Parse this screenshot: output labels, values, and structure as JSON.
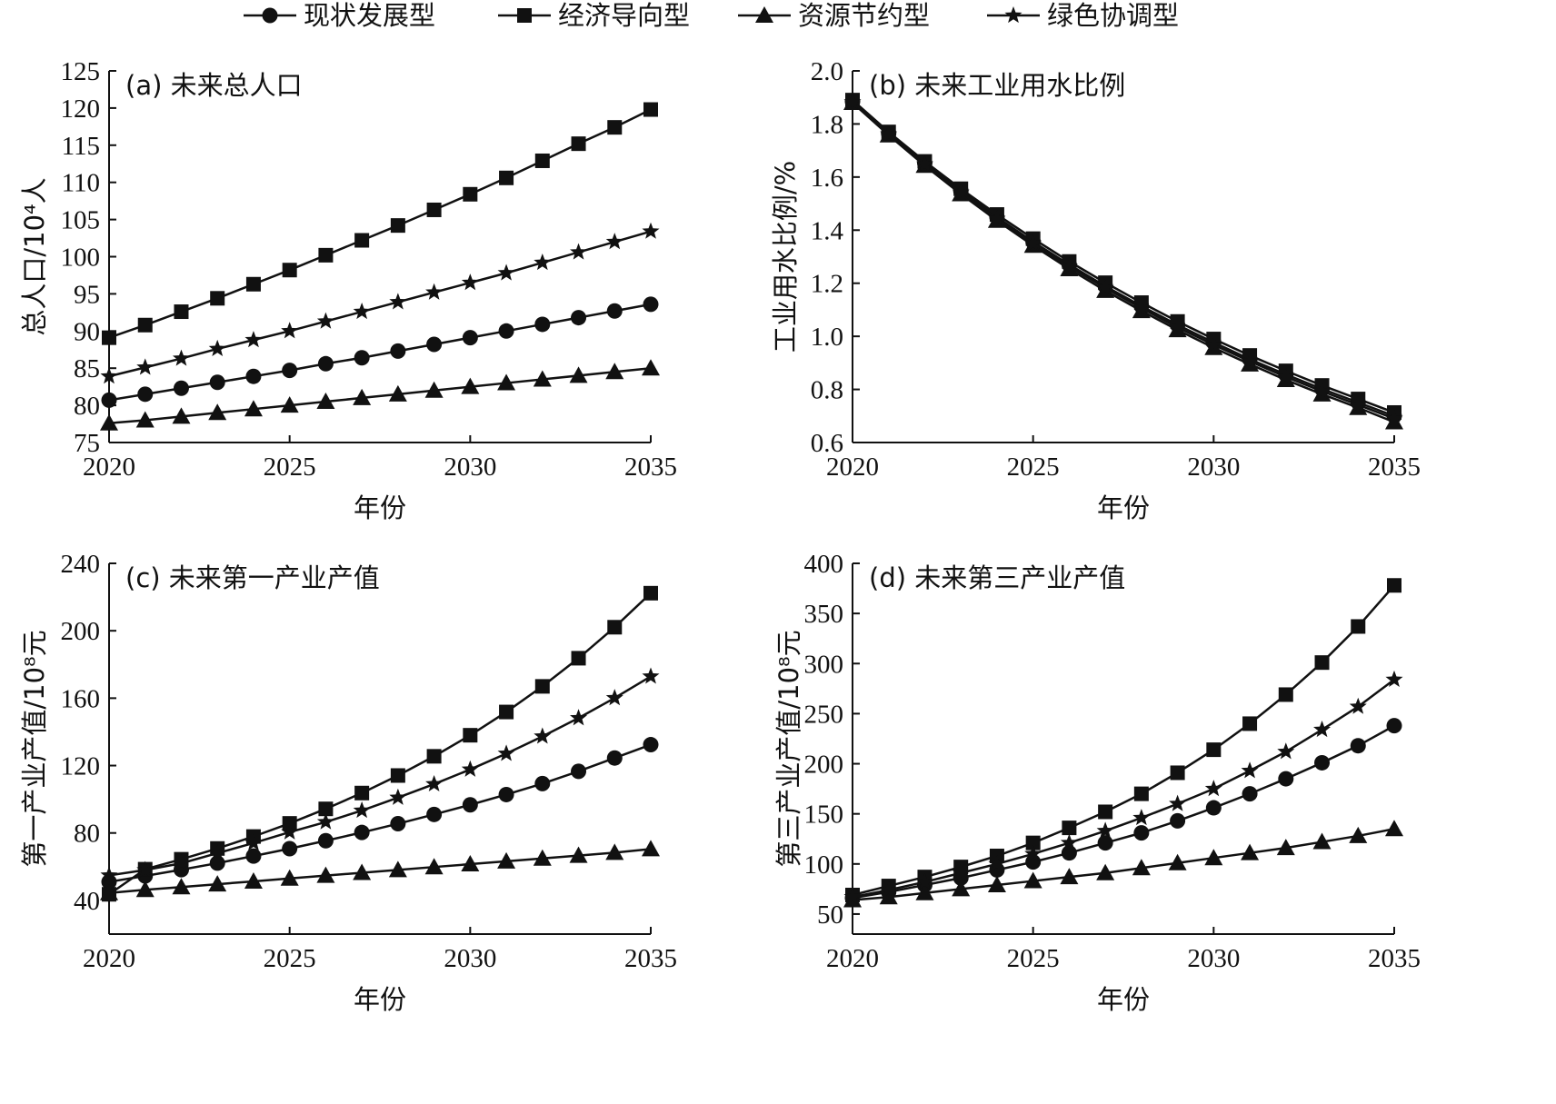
{
  "legend": {
    "series": [
      "现状发展型",
      "经济导向型",
      "资源节约型",
      "绿色协调型"
    ],
    "markers": [
      "circle",
      "square",
      "triangle",
      "star"
    ]
  },
  "chart_data": [
    {
      "type": "line",
      "title": "(a) 未来总人口",
      "xlabel": "年份",
      "ylabel": "总人口/10⁴人",
      "xlim": [
        2020,
        2035
      ],
      "ylim": [
        75,
        125
      ],
      "xticks": [
        2020,
        2025,
        2030,
        2035
      ],
      "yticks": [
        75,
        80,
        85,
        90,
        95,
        100,
        105,
        110,
        115,
        120,
        125
      ],
      "x": [
        2020,
        2021,
        2022,
        2023,
        2024,
        2025,
        2026,
        2027,
        2028,
        2029,
        2030,
        2031,
        2032,
        2033,
        2034,
        2035
      ],
      "series": [
        {
          "name": "现状发展型",
          "values": [
            80.7,
            81.5,
            82.3,
            83.1,
            83.9,
            84.7,
            85.6,
            86.4,
            87.3,
            88.2,
            89.1,
            90.0,
            90.9,
            91.8,
            92.7,
            93.6
          ]
        },
        {
          "name": "经济导向型",
          "values": [
            89.1,
            90.8,
            92.6,
            94.4,
            96.3,
            98.2,
            100.2,
            102.2,
            104.2,
            106.3,
            108.4,
            110.6,
            112.9,
            115.2,
            117.4,
            119.8
          ]
        },
        {
          "name": "资源节约型",
          "values": [
            77.6,
            78.0,
            78.5,
            79.0,
            79.5,
            80.0,
            80.5,
            81.0,
            81.5,
            82.0,
            82.5,
            83.0,
            83.5,
            84.0,
            84.5,
            85.0
          ]
        },
        {
          "name": "绿色协调型",
          "values": [
            83.9,
            85.1,
            86.3,
            87.6,
            88.8,
            90.0,
            91.3,
            92.6,
            93.9,
            95.2,
            96.5,
            97.8,
            99.2,
            100.6,
            102.0,
            103.4
          ]
        }
      ]
    },
    {
      "type": "line",
      "title": "(b) 未来工业用水比例",
      "xlabel": "年份",
      "ylabel": "工业用水比例/%",
      "xlim": [
        2020,
        2035
      ],
      "ylim": [
        0.6,
        2.0
      ],
      "xticks": [
        2020,
        2025,
        2030,
        2035
      ],
      "yticks": [
        0.6,
        0.8,
        1.0,
        1.2,
        1.4,
        1.6,
        1.8,
        2.0
      ],
      "tick_decimals": 1,
      "x": [
        2020,
        2021,
        2022,
        2023,
        2024,
        2025,
        2026,
        2027,
        2028,
        2029,
        2030,
        2031,
        2032,
        2033,
        2034,
        2035
      ],
      "series": [
        {
          "name": "现状发展型",
          "values": [
            1.885,
            1.765,
            1.653,
            1.548,
            1.449,
            1.356,
            1.27,
            1.189,
            1.114,
            1.043,
            0.977,
            0.914,
            0.856,
            0.802,
            0.751,
            0.7
          ]
        },
        {
          "name": "经济导向型",
          "values": [
            1.89,
            1.77,
            1.659,
            1.556,
            1.459,
            1.368,
            1.282,
            1.202,
            1.127,
            1.056,
            0.99,
            0.928,
            0.87,
            0.815,
            0.764,
            0.713
          ]
        },
        {
          "name": "资源节约型",
          "values": [
            1.88,
            1.758,
            1.643,
            1.536,
            1.436,
            1.342,
            1.254,
            1.172,
            1.096,
            1.024,
            0.957,
            0.895,
            0.836,
            0.782,
            0.731,
            0.677
          ]
        },
        {
          "name": "绿色协调型",
          "values": [
            1.882,
            1.761,
            1.648,
            1.542,
            1.443,
            1.35,
            1.263,
            1.182,
            1.106,
            1.034,
            0.968,
            0.906,
            0.847,
            0.793,
            0.742,
            0.69
          ]
        }
      ]
    },
    {
      "type": "line",
      "title": "(c) 未来第一产业产值",
      "xlabel": "年份",
      "ylabel": "第一产业产值/10⁸元",
      "xlim": [
        2020,
        2035
      ],
      "ylim": [
        20,
        240
      ],
      "xticks": [
        2020,
        2025,
        2030,
        2035
      ],
      "yticks": [
        40,
        80,
        120,
        160,
        200,
        240
      ],
      "x": [
        2020,
        2021,
        2022,
        2023,
        2024,
        2025,
        2026,
        2027,
        2028,
        2029,
        2030,
        2031,
        2032,
        2033,
        2034,
        2035
      ],
      "series": [
        {
          "name": "现状发展型",
          "values": [
            51.0,
            54.5,
            58.2,
            62.1,
            66.3,
            70.7,
            75.4,
            80.3,
            85.5,
            91.0,
            96.7,
            102.8,
            109.3,
            116.6,
            124.5,
            132.4
          ]
        },
        {
          "name": "经济导向型",
          "values": [
            43.6,
            58.5,
            64.4,
            70.8,
            77.9,
            85.7,
            94.3,
            103.7,
            114.1,
            125.5,
            138.0,
            151.8,
            167.0,
            183.7,
            202.1,
            222.3
          ]
        },
        {
          "name": "资源节约型",
          "values": [
            44.4,
            46.3,
            47.9,
            49.6,
            51.3,
            53.0,
            54.7,
            56.4,
            58.1,
            59.8,
            61.5,
            63.2,
            64.9,
            66.6,
            68.3,
            70.5
          ]
        },
        {
          "name": "绿色协调型",
          "values": [
            54.8,
            58.0,
            62.0,
            68.0,
            74.0,
            80.5,
            86.5,
            93.3,
            101.0,
            109.0,
            117.7,
            127.1,
            137.3,
            148.2,
            160.1,
            172.9
          ]
        }
      ]
    },
    {
      "type": "line",
      "title": "(d) 未来第三产业产值",
      "xlabel": "年份",
      "ylabel": "第三产业产值/10⁸元",
      "xlim": [
        2020,
        2035
      ],
      "ylim": [
        30,
        400
      ],
      "xticks": [
        2020,
        2025,
        2030,
        2035
      ],
      "yticks": [
        50,
        100,
        150,
        200,
        250,
        300,
        350,
        400
      ],
      "x": [
        2020,
        2021,
        2022,
        2023,
        2024,
        2025,
        2026,
        2027,
        2028,
        2029,
        2030,
        2031,
        2032,
        2033,
        2034,
        2035
      ],
      "series": [
        {
          "name": "现状发展型",
          "values": [
            66,
            72,
            79,
            86,
            94,
            102,
            111,
            121,
            131,
            143,
            156,
            170,
            185,
            201,
            218,
            238
          ]
        },
        {
          "name": "经济导向型",
          "values": [
            69,
            78,
            87,
            97,
            108,
            121,
            136,
            152,
            170,
            191,
            214,
            240,
            269,
            301,
            337,
            378
          ]
        },
        {
          "name": "资源节约型",
          "values": [
            64,
            67,
            71,
            75,
            79,
            83,
            87,
            91,
            96,
            101,
            106,
            111,
            116,
            122,
            128,
            135
          ]
        },
        {
          "name": "绿色协调型",
          "values": [
            67,
            74,
            82,
            91,
            100,
            110,
            121,
            133,
            146,
            160,
            175,
            193,
            212,
            234,
            257,
            284
          ]
        }
      ]
    }
  ]
}
